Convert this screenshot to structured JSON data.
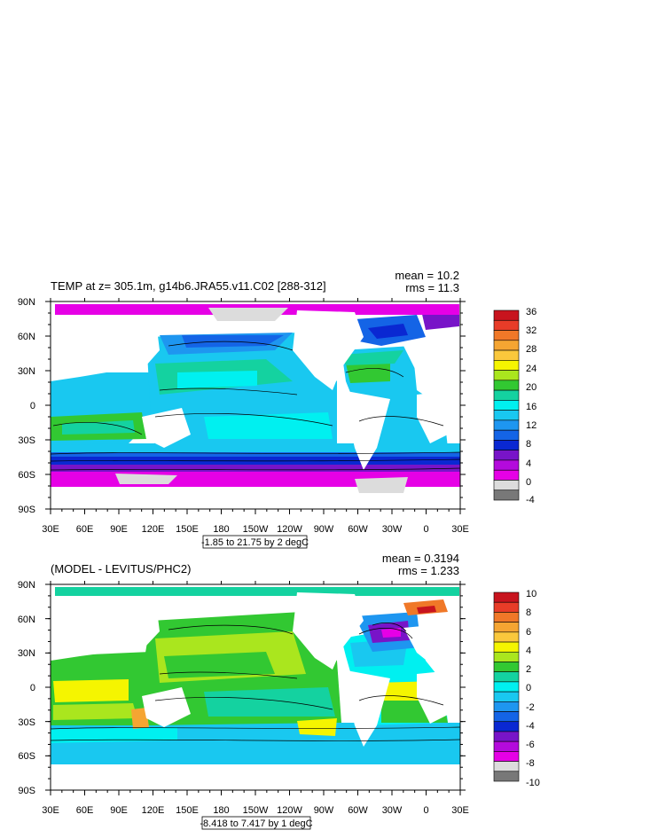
{
  "panels": [
    {
      "title": "TEMP at z= 305.1m, g14b6.JRA55.v11.C02 [288-312]",
      "mean": "mean = 10.2",
      "rms": "rms = 11.3",
      "lat_labels": [
        "90N",
        "60N",
        "30N",
        "0",
        "30S",
        "60S",
        "90S"
      ],
      "lon_labels": [
        "30E",
        "60E",
        "90E",
        "120E",
        "150E",
        "180",
        "150W",
        "120W",
        "90W",
        "60W",
        "30W",
        "0",
        "30E"
      ],
      "range_text": "-1.85 to 21.75 by 2 degC",
      "colorbar": {
        "labels": [
          "36",
          "32",
          "28",
          "24",
          "20",
          "16",
          "12",
          "8",
          "4",
          "0",
          "-4"
        ],
        "colors": [
          "#c8141e",
          "#e83c28",
          "#f07828",
          "#f5a532",
          "#fac83c",
          "#f5f500",
          "#aae61e",
          "#32c832",
          "#14d2a0",
          "#00f0f0",
          "#19c8f0",
          "#1e96f0",
          "#1464e6",
          "#0a28d2",
          "#7814c8",
          "#b40adc",
          "#e600e6",
          "#dcdcdc",
          "#787878"
        ]
      }
    },
    {
      "title": "(MODEL - LEVITUS/PHC2)",
      "mean": "mean = 0.3194",
      "rms": "rms = 1.233",
      "lat_labels": [
        "90N",
        "60N",
        "30N",
        "0",
        "30S",
        "60S",
        "90S"
      ],
      "lon_labels": [
        "30E",
        "60E",
        "90E",
        "120E",
        "150E",
        "180",
        "150W",
        "120W",
        "90W",
        "60W",
        "30W",
        "0",
        "30E"
      ],
      "range_text": "-8.418 to 7.417 by 1 degC",
      "colorbar": {
        "labels": [
          "10",
          "8",
          "6",
          "4",
          "2",
          "0",
          "-2",
          "-4",
          "-6",
          "-8",
          "-10"
        ],
        "colors": [
          "#c8141e",
          "#e83c28",
          "#f07828",
          "#f5a532",
          "#fac83c",
          "#f5f500",
          "#aae61e",
          "#32c832",
          "#14d2a0",
          "#00f0f0",
          "#19c8f0",
          "#1e96f0",
          "#1464e6",
          "#0a28d2",
          "#7814c8",
          "#b40adc",
          "#e600e6",
          "#dcdcdc",
          "#787878"
        ]
      }
    }
  ]
}
